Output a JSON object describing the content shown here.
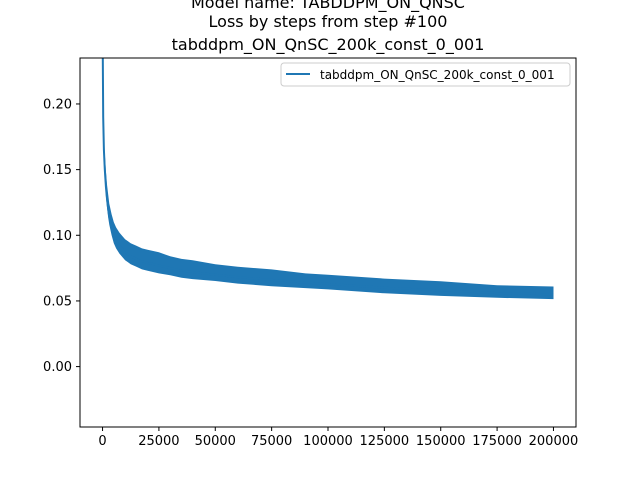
{
  "chart_data": {
    "type": "line",
    "title_lines": [
      "Model name: TABDDPM_ON_QNSC",
      "Loss by steps from step #100",
      "tabddpm_ON_QnSC_200k_const_0_001"
    ],
    "xlabel": "",
    "ylabel": "",
    "xlim": [
      -10000,
      210000
    ],
    "ylim": [
      -0.046,
      0.235
    ],
    "x_ticks": [
      0,
      25000,
      50000,
      75000,
      100000,
      125000,
      150000,
      175000,
      200000
    ],
    "x_tick_labels": [
      "0",
      "25000",
      "50000",
      "75000",
      "100000",
      "125000",
      "150000",
      "175000",
      "200000"
    ],
    "y_ticks": [
      0.0,
      0.05,
      0.1,
      0.15,
      0.2
    ],
    "y_tick_labels": [
      "0.00",
      "0.05",
      "0.10",
      "0.15",
      "0.20"
    ],
    "grid": false,
    "legend_position": "upper right",
    "series": [
      {
        "name": "tabddpm_ON_QnSC_200k_const_0_001",
        "color": "#1f77b4",
        "x": [
          100,
          300,
          600,
          1000,
          1500,
          2000,
          2500,
          3000,
          4000,
          5000,
          6000,
          7500,
          10000,
          12500,
          15000,
          17500,
          20000,
          25000,
          30000,
          35000,
          40000,
          50000,
          60000,
          75000,
          90000,
          100000,
          125000,
          150000,
          175000,
          200000
        ],
        "y": [
          0.235,
          0.19,
          0.165,
          0.15,
          0.137,
          0.127,
          0.12,
          0.114,
          0.106,
          0.1,
          0.096,
          0.092,
          0.087,
          0.084,
          0.082,
          0.08,
          0.079,
          0.077,
          0.075,
          0.073,
          0.072,
          0.07,
          0.068,
          0.066,
          0.064,
          0.063,
          0.06,
          0.058,
          0.056,
          0.055
        ],
        "band": [
          0.02,
          0.016,
          0.013,
          0.012,
          0.012,
          0.011,
          0.011,
          0.01,
          0.01,
          0.01,
          0.01,
          0.01,
          0.01,
          0.01,
          0.01,
          0.01,
          0.01,
          0.01,
          0.009,
          0.009,
          0.009,
          0.008,
          0.008,
          0.008,
          0.007,
          0.007,
          0.007,
          0.007,
          0.006,
          0.006
        ]
      }
    ]
  }
}
